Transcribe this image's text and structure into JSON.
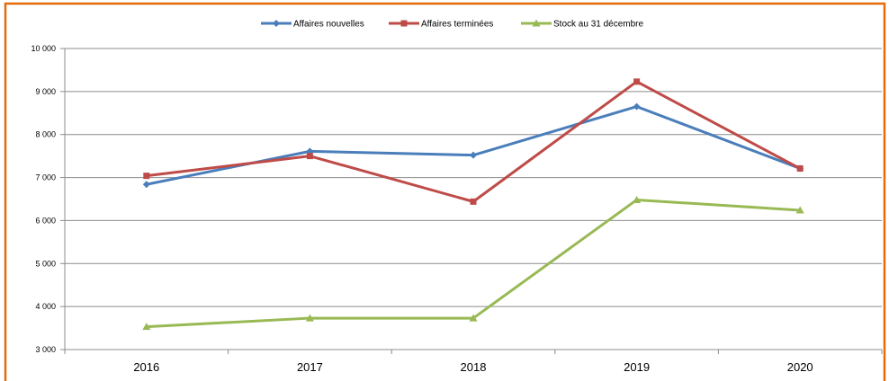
{
  "chart_data": {
    "type": "line",
    "categories": [
      "2016",
      "2017",
      "2018",
      "2019",
      "2020"
    ],
    "series": [
      {
        "name": "Affaires nouvelles",
        "values": [
          6840,
          7610,
          7520,
          8650,
          7210
        ],
        "color": "#4a7ebb",
        "marker": "diamond"
      },
      {
        "name": "Affaires terminées",
        "values": [
          7040,
          7500,
          6440,
          9230,
          7210
        ],
        "color": "#be4b48",
        "marker": "square"
      },
      {
        "name": "Stock au 31 décembre",
        "values": [
          3530,
          3730,
          3730,
          6480,
          6240
        ],
        "color": "#98b954",
        "marker": "triangle"
      }
    ],
    "ylim": [
      3000,
      10000
    ],
    "yticks": [
      "3 000",
      "4 000",
      "5 000",
      "6 000",
      "7 000",
      "8 000",
      "9 000",
      "10 000"
    ],
    "grid": true,
    "legend": "top",
    "border_color": "#e46c0a"
  }
}
